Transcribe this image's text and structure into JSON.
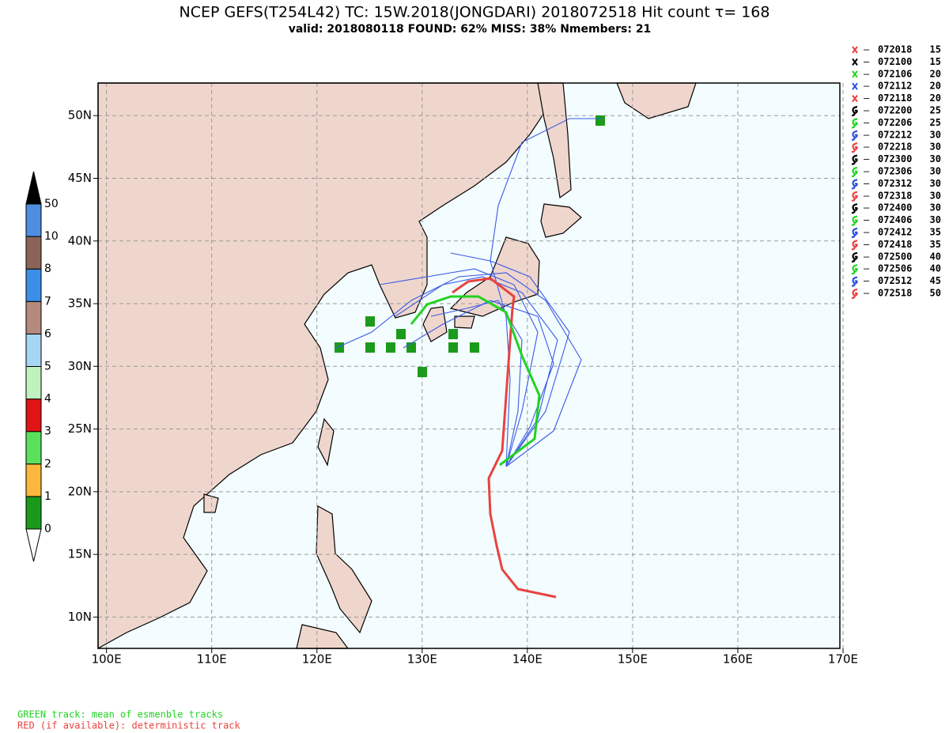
{
  "header": {
    "title": "NCEP GEFS(T254L42) TC: 15W.2018(JONGDARI) 2018072518 Hit count  τ= 168",
    "subtitle": "valid: 2018080118   FOUND: 62%   MISS: 38%      Nmembers: 21"
  },
  "map": {
    "xlim": [
      99.2,
      169.7
    ],
    "ylim": [
      7.5,
      52.6
    ],
    "xticks": [
      {
        "value": 100,
        "label": "100E"
      },
      {
        "value": 110,
        "label": "110E"
      },
      {
        "value": 120,
        "label": "120E"
      },
      {
        "value": 130,
        "label": "130E"
      },
      {
        "value": 140,
        "label": "140E"
      },
      {
        "value": 150,
        "label": "150E"
      },
      {
        "value": 160,
        "label": "160E"
      },
      {
        "value": 170,
        "label": "170E"
      }
    ],
    "yticks": [
      {
        "value": 10,
        "label": "10N"
      },
      {
        "value": 15,
        "label": "15N"
      },
      {
        "value": 20,
        "label": "20N"
      },
      {
        "value": 25,
        "label": "25N"
      },
      {
        "value": 30,
        "label": "30N"
      },
      {
        "value": 35,
        "label": "35N"
      },
      {
        "value": 40,
        "label": "40N"
      },
      {
        "value": 45,
        "label": "45N"
      },
      {
        "value": 50,
        "label": "50N"
      }
    ],
    "grid": true
  },
  "colorbar": {
    "levels": [
      0,
      1,
      2,
      3,
      4,
      5,
      6,
      7,
      8,
      10,
      50
    ],
    "colors": [
      "#ffffff",
      "#1a9a1a",
      "#fcb83c",
      "#5ae05a",
      "#e01414",
      "#bff2bf",
      "#a6d6f5",
      "#b58a7c",
      "#3a8ee8",
      "#8c6457",
      "#4d8ee0",
      "#000000"
    ]
  },
  "legend": [
    {
      "time": "072018",
      "vmax": "15",
      "color": "#e8423f",
      "marker": "x"
    },
    {
      "time": "072100",
      "vmax": "15",
      "color": "#000000",
      "marker": "x"
    },
    {
      "time": "072106",
      "vmax": "20",
      "color": "#21d321",
      "marker": "x"
    },
    {
      "time": "072112",
      "vmax": "20",
      "color": "#2b4fe0",
      "marker": "x"
    },
    {
      "time": "072118",
      "vmax": "20",
      "color": "#e8423f",
      "marker": "x"
    },
    {
      "time": "072200",
      "vmax": "25",
      "color": "#000000",
      "marker": "storm"
    },
    {
      "time": "072206",
      "vmax": "25",
      "color": "#21d321",
      "marker": "storm"
    },
    {
      "time": "072212",
      "vmax": "30",
      "color": "#2b4fe0",
      "marker": "storm"
    },
    {
      "time": "072218",
      "vmax": "30",
      "color": "#e8423f",
      "marker": "storm"
    },
    {
      "time": "072300",
      "vmax": "30",
      "color": "#000000",
      "marker": "storm"
    },
    {
      "time": "072306",
      "vmax": "30",
      "color": "#21d321",
      "marker": "storm"
    },
    {
      "time": "072312",
      "vmax": "30",
      "color": "#2b4fe0",
      "marker": "storm"
    },
    {
      "time": "072318",
      "vmax": "30",
      "color": "#e8423f",
      "marker": "storm"
    },
    {
      "time": "072400",
      "vmax": "30",
      "color": "#000000",
      "marker": "storm"
    },
    {
      "time": "072406",
      "vmax": "30",
      "color": "#21d321",
      "marker": "storm"
    },
    {
      "time": "072412",
      "vmax": "35",
      "color": "#2b4fe0",
      "marker": "storm"
    },
    {
      "time": "072418",
      "vmax": "35",
      "color": "#e8423f",
      "marker": "storm"
    },
    {
      "time": "072500",
      "vmax": "40",
      "color": "#000000",
      "marker": "storm"
    },
    {
      "time": "072506",
      "vmax": "40",
      "color": "#21d321",
      "marker": "storm"
    },
    {
      "time": "072512",
      "vmax": "45",
      "color": "#2b4fe0",
      "marker": "storm"
    },
    {
      "time": "072518",
      "vmax": "50",
      "color": "#e8423f",
      "marker": "storm"
    }
  ],
  "footer": {
    "green_note": "GREEN track: mean of esmenble tracks",
    "red_note": "RED (if available): deterministic track"
  }
}
